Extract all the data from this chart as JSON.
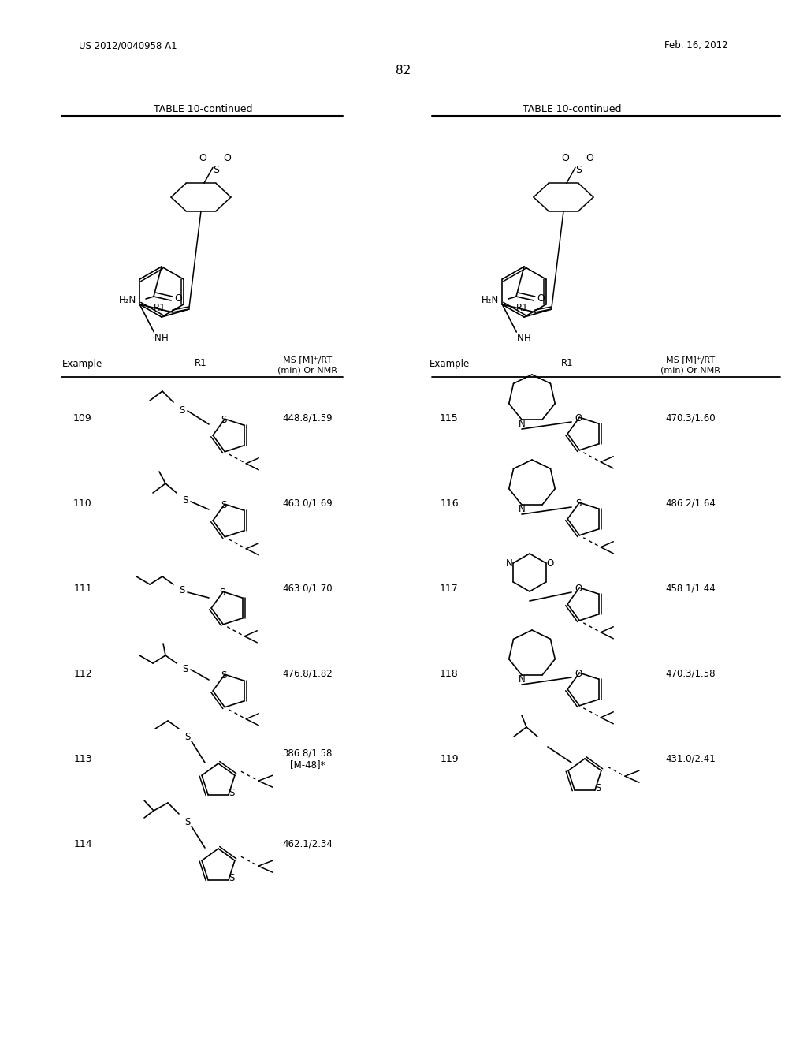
{
  "page_header_left": "US 2012/0040958 A1",
  "page_header_right": "Feb. 16, 2012",
  "page_number": "82",
  "table_title": "TABLE 10-continued",
  "bg_color": "#ffffff",
  "text_color": "#000000",
  "rows_left": [
    {
      "example": "109",
      "ms": "448.8/1.59"
    },
    {
      "example": "110",
      "ms": "463.0/1.69"
    },
    {
      "example": "111",
      "ms": "463.0/1.70"
    },
    {
      "example": "112",
      "ms": "476.8/1.82"
    },
    {
      "example": "113",
      "ms": "386.8/1.58\n[M-48]*"
    },
    {
      "example": "114",
      "ms": "462.1/2.34"
    }
  ],
  "rows_right": [
    {
      "example": "115",
      "ms": "470.3/1.60"
    },
    {
      "example": "116",
      "ms": "486.2/1.64"
    },
    {
      "example": "117",
      "ms": "458.1/1.44"
    },
    {
      "example": "118",
      "ms": "470.3/1.58"
    },
    {
      "example": "119",
      "ms": "431.0/2.41"
    }
  ]
}
